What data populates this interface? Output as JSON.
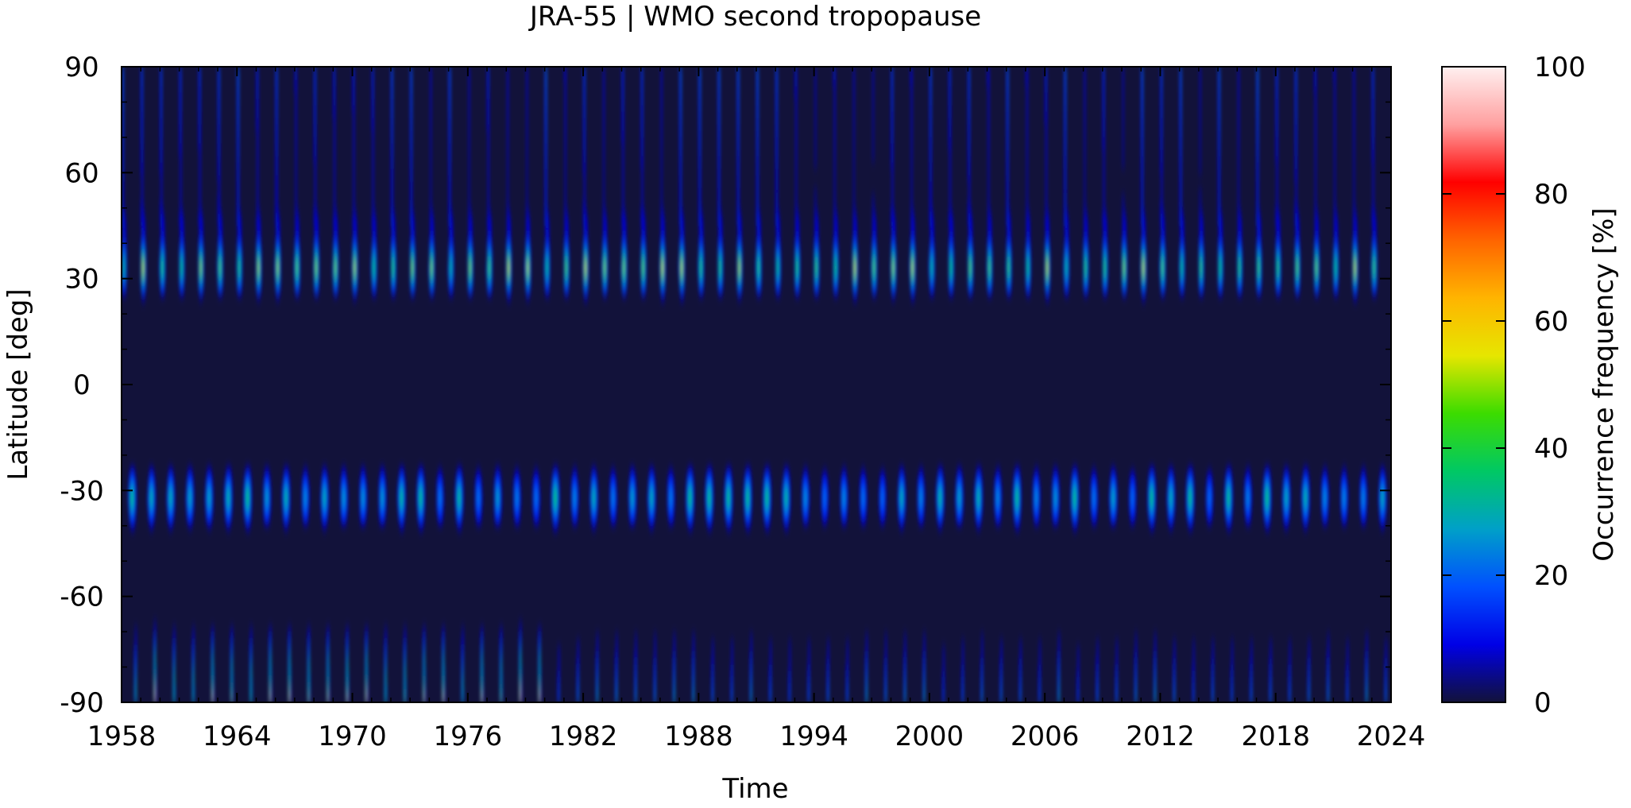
{
  "chart_data": {
    "type": "heatmap",
    "title": "JRA-55 | WMO second tropopause",
    "xlabel": "Time",
    "ylabel": "Latitude [deg]",
    "colorbar_label": "Occurrence frequency [%]",
    "xlim": [
      1958,
      2024
    ],
    "ylim": [
      -90,
      90
    ],
    "zlim": [
      0,
      100
    ],
    "x_ticks": [
      1958,
      1964,
      1970,
      1976,
      1982,
      1988,
      1994,
      2000,
      2006,
      2012,
      2018,
      2024
    ],
    "y_ticks": [
      -90,
      -60,
      -30,
      0,
      30,
      60,
      90
    ],
    "z_ticks": [
      0,
      20,
      40,
      60,
      80,
      100
    ],
    "colormap": [
      "#12123a",
      "#0000e6",
      "#0050ff",
      "#00a0c8",
      "#00c864",
      "#3cdc00",
      "#e6e600",
      "#ffb400",
      "#ff6400",
      "#ff0000",
      "#ffa0a0",
      "#fff0f0"
    ],
    "features": {
      "nh_subtropical_band": {
        "center_lat": 33,
        "typical_peak": 45,
        "seasonal": true
      },
      "sh_subtropical_band": {
        "center_lat": -32,
        "typical_peak": 30,
        "seasonal": true
      },
      "south_pole_spikes": {
        "lat_range": [
          -90,
          -65
        ],
        "peak_early": 60,
        "peak_late": 25,
        "transition_year": 1980
      },
      "north_pole_spikes": {
        "lat_range": [
          45,
          90
        ],
        "peak": 15
      },
      "tropics_background": 2
    }
  }
}
